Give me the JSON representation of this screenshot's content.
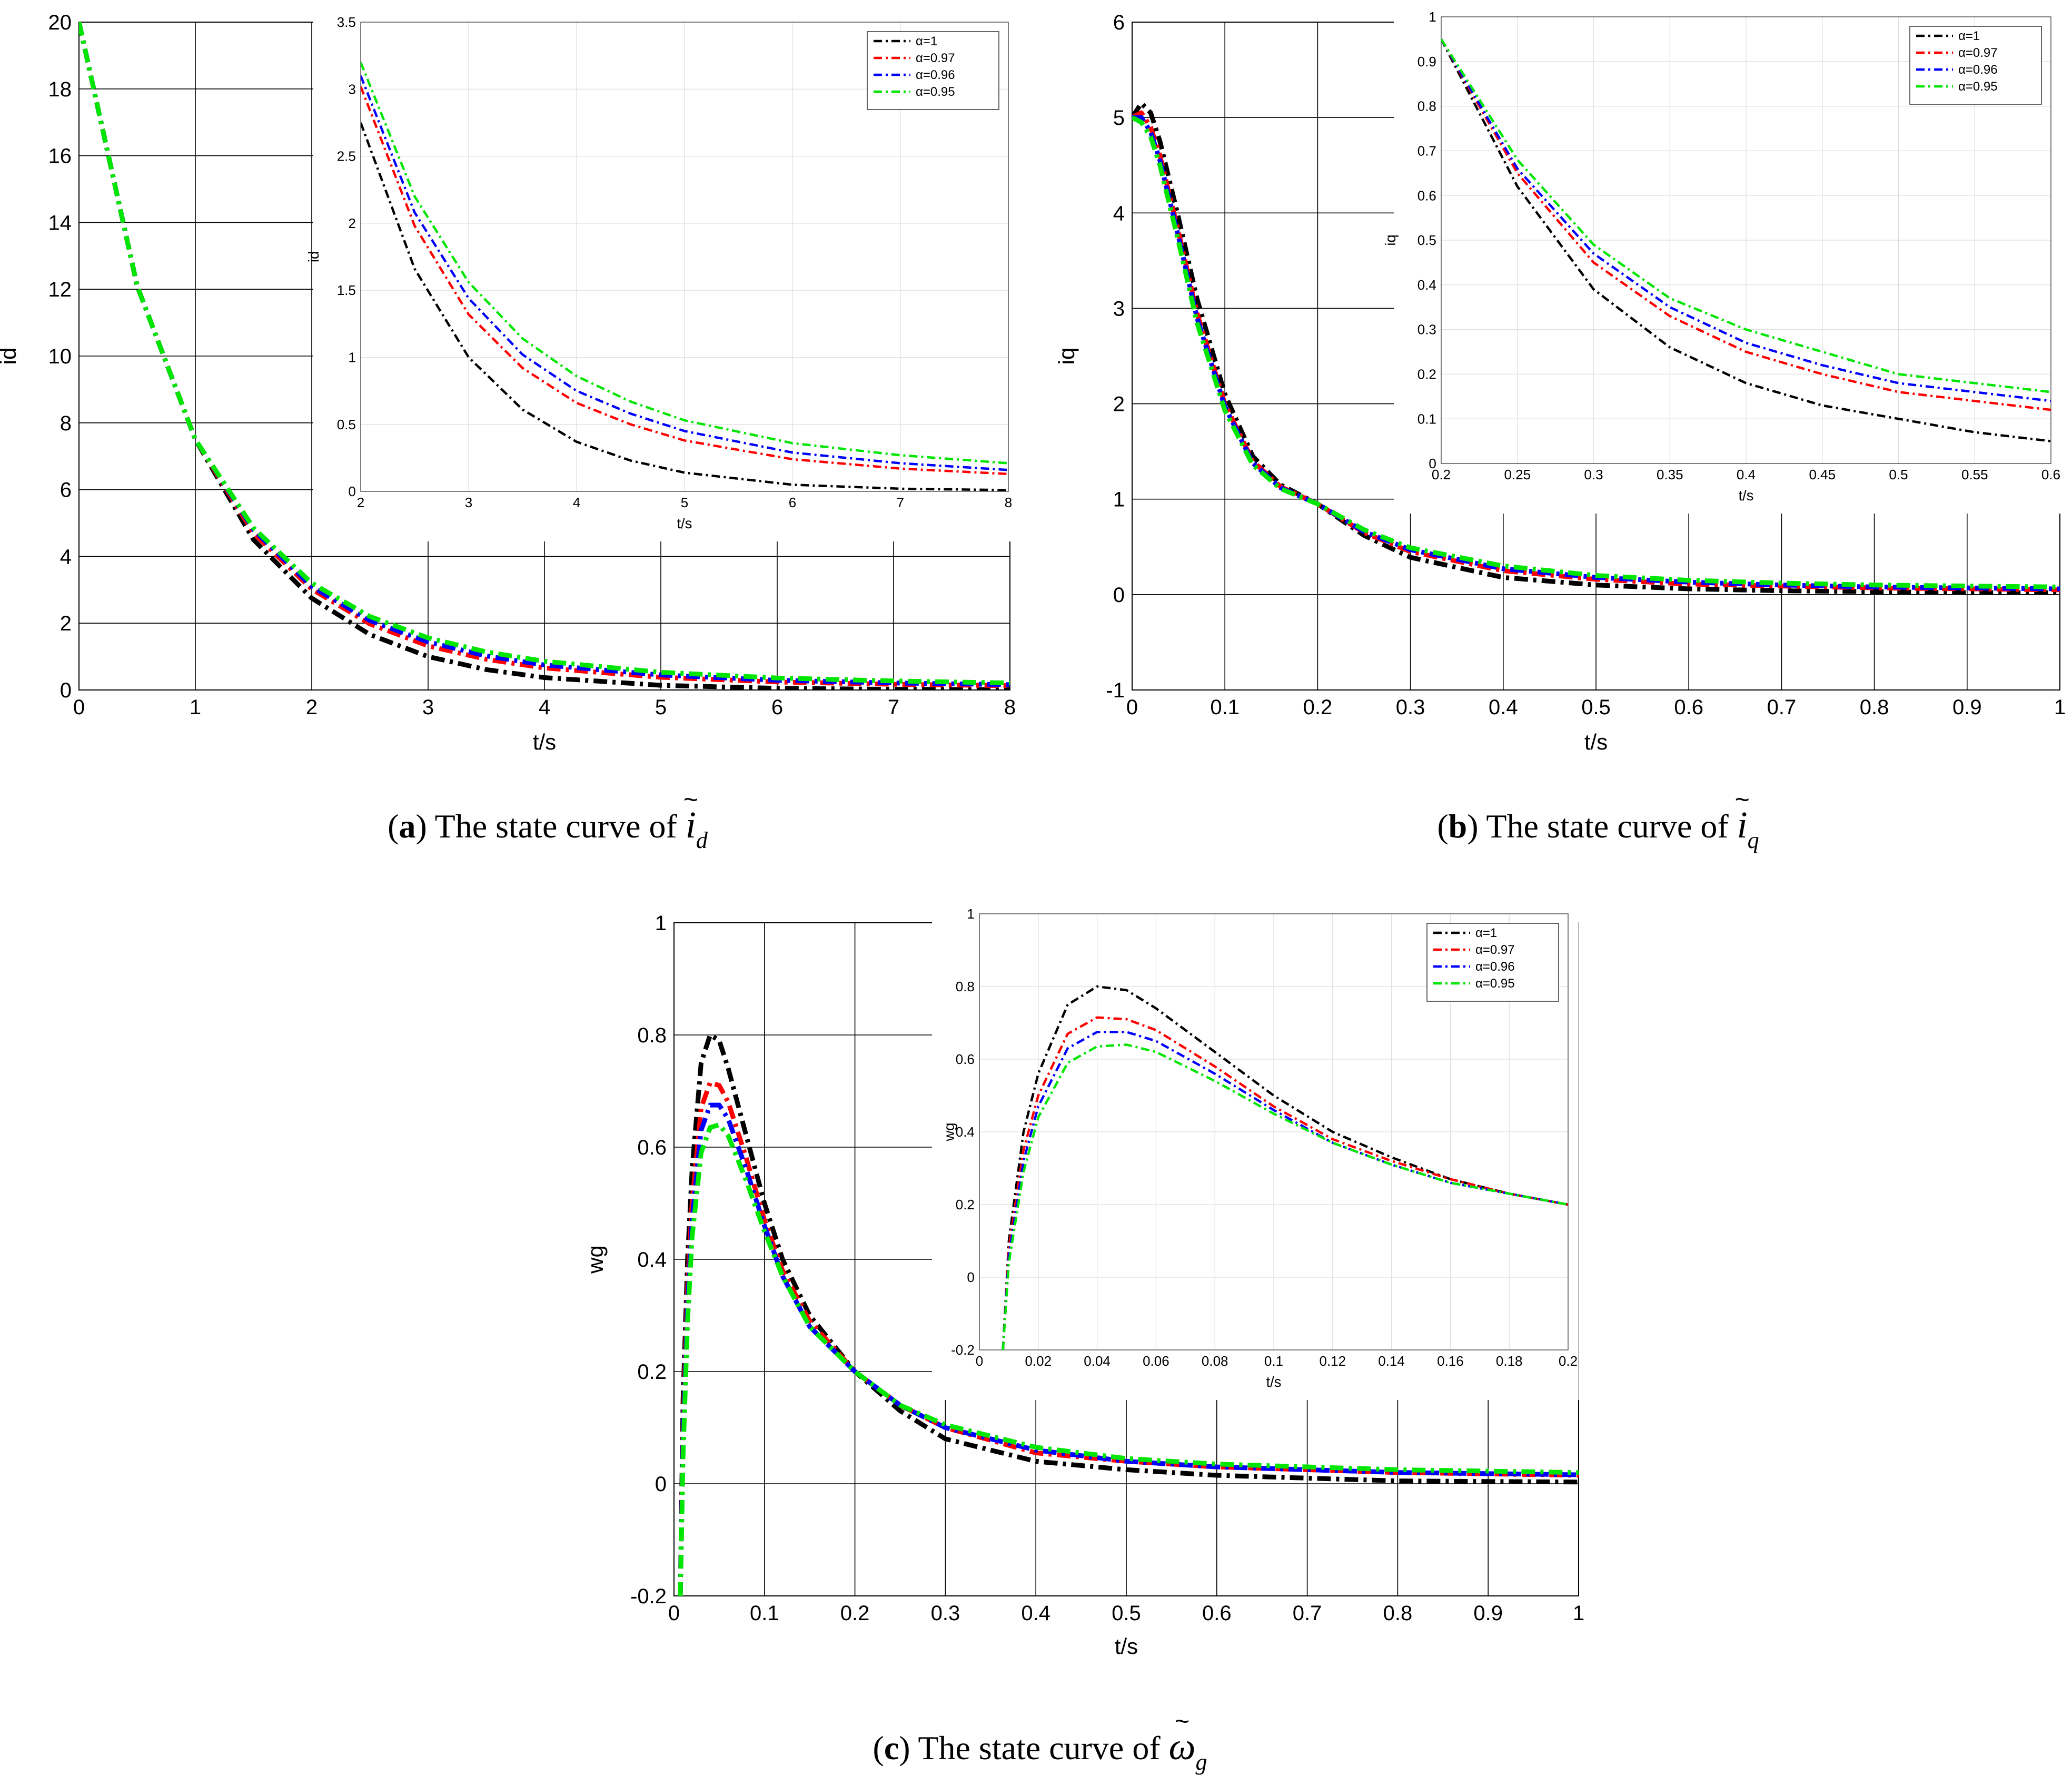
{
  "colors": {
    "n1": "#000000",
    "n097": "#ff0000",
    "n096": "#0000ff",
    "n095": "#00e600"
  },
  "captions": [
    {
      "label": "a",
      "text": " The state curve of ",
      "symbol": "i",
      "sub": "d"
    },
    {
      "label": "b",
      "text": " The state curve of ",
      "symbol": "i",
      "sub": "q"
    },
    {
      "label": "c",
      "text": " The state curve of ",
      "symbol": "ω",
      "sub": "g"
    }
  ],
  "chart_data": [
    {
      "id": "a-main",
      "type": "line",
      "xlabel": "t/s",
      "ylabel": "id",
      "xlim": [
        0,
        8
      ],
      "ylim": [
        0,
        20
      ],
      "xticks": [
        0,
        1,
        2,
        3,
        4,
        5,
        6,
        7,
        8
      ],
      "yticks": [
        0,
        2,
        4,
        6,
        8,
        10,
        12,
        14,
        16,
        18,
        20
      ],
      "legend": "none",
      "series": [
        {
          "name": "α=1",
          "color": "#000000",
          "x": [
            0,
            0.5,
            1,
            1.5,
            2,
            2.5,
            3,
            3.5,
            4,
            5,
            6,
            7,
            8
          ],
          "y": [
            20,
            12.1,
            7.5,
            4.5,
            2.75,
            1.66,
            1.0,
            0.61,
            0.37,
            0.14,
            0.05,
            0.02,
            0.01
          ]
        },
        {
          "name": "α=0.97",
          "color": "#ff0000",
          "x": [
            0,
            0.5,
            1,
            1.5,
            2,
            2.5,
            3,
            3.5,
            4,
            5,
            6,
            7,
            8
          ],
          "y": [
            20,
            12.1,
            7.5,
            4.7,
            3.02,
            1.98,
            1.32,
            0.92,
            0.66,
            0.38,
            0.24,
            0.17,
            0.13
          ]
        },
        {
          "name": "α=0.96",
          "color": "#0000ff",
          "x": [
            0,
            0.5,
            1,
            1.5,
            2,
            2.5,
            3,
            3.5,
            4,
            5,
            6,
            7,
            8
          ],
          "y": [
            20,
            12.1,
            7.5,
            4.8,
            3.1,
            2.08,
            1.44,
            1.02,
            0.75,
            0.45,
            0.29,
            0.21,
            0.16
          ]
        },
        {
          "name": "α=0.95",
          "color": "#00e600",
          "x": [
            0,
            0.5,
            1,
            1.5,
            2,
            2.5,
            3,
            3.5,
            4,
            5,
            6,
            7,
            8
          ],
          "y": [
            20,
            12.1,
            7.5,
            4.85,
            3.2,
            2.2,
            1.56,
            1.14,
            0.86,
            0.53,
            0.36,
            0.27,
            0.21
          ]
        }
      ]
    },
    {
      "id": "a-inset",
      "type": "line",
      "xlabel": "t/s",
      "ylabel": "id",
      "xlim": [
        2,
        8
      ],
      "ylim": [
        0,
        3.5
      ],
      "xticks": [
        2,
        3,
        4,
        5,
        6,
        7,
        8
      ],
      "yticks": [
        0,
        0.5,
        1,
        1.5,
        2,
        2.5,
        3,
        3.5
      ],
      "legend": "top-right",
      "series": [
        {
          "name": "α=1",
          "color": "#000000",
          "x": [
            2,
            2.5,
            3,
            3.5,
            4,
            4.5,
            5,
            6,
            7,
            8
          ],
          "y": [
            2.75,
            1.66,
            1.0,
            0.61,
            0.37,
            0.23,
            0.14,
            0.05,
            0.02,
            0.01
          ]
        },
        {
          "name": "α=0.97",
          "color": "#ff0000",
          "x": [
            2,
            2.5,
            3,
            3.5,
            4,
            4.5,
            5,
            6,
            7,
            8
          ],
          "y": [
            3.02,
            1.98,
            1.32,
            0.92,
            0.66,
            0.5,
            0.38,
            0.24,
            0.17,
            0.13
          ]
        },
        {
          "name": "α=0.96",
          "color": "#0000ff",
          "x": [
            2,
            2.5,
            3,
            3.5,
            4,
            4.5,
            5,
            6,
            7,
            8
          ],
          "y": [
            3.1,
            2.08,
            1.44,
            1.02,
            0.75,
            0.58,
            0.45,
            0.29,
            0.21,
            0.16
          ]
        },
        {
          "name": "α=0.95",
          "color": "#00e600",
          "x": [
            2,
            2.5,
            3,
            3.5,
            4,
            4.5,
            5,
            6,
            7,
            8
          ],
          "y": [
            3.2,
            2.2,
            1.56,
            1.14,
            0.86,
            0.67,
            0.53,
            0.36,
            0.27,
            0.21
          ]
        }
      ]
    },
    {
      "id": "b-main",
      "type": "line",
      "xlabel": "t/s",
      "ylabel": "iq",
      "xlim": [
        0,
        1
      ],
      "ylim": [
        -1,
        6
      ],
      "xticks": [
        0,
        0.1,
        0.2,
        0.3,
        0.4,
        0.5,
        0.6,
        0.7,
        0.8,
        0.9,
        1
      ],
      "yticks": [
        -1,
        0,
        1,
        2,
        3,
        4,
        5,
        6
      ],
      "legend": "none",
      "series": [
        {
          "name": "α=1",
          "color": "#000000",
          "x": [
            0,
            0.01,
            0.02,
            0.03,
            0.05,
            0.07,
            0.1,
            0.13,
            0.16,
            0.2,
            0.25,
            0.3,
            0.4,
            0.5,
            0.6,
            0.7,
            0.8,
            0.9,
            1
          ],
          "y": [
            5.0,
            5.15,
            5.05,
            4.75,
            3.95,
            3.1,
            2.1,
            1.45,
            1.15,
            0.95,
            0.62,
            0.39,
            0.18,
            0.1,
            0.06,
            0.04,
            0.03,
            0.02,
            0.02
          ]
        },
        {
          "name": "α=0.97",
          "color": "#ff0000",
          "x": [
            0,
            0.01,
            0.02,
            0.03,
            0.05,
            0.07,
            0.1,
            0.13,
            0.16,
            0.2,
            0.25,
            0.3,
            0.4,
            0.5,
            0.6,
            0.7,
            0.8,
            0.9,
            1
          ],
          "y": [
            5.0,
            5.05,
            4.9,
            4.6,
            3.8,
            2.95,
            2.0,
            1.4,
            1.13,
            0.95,
            0.65,
            0.45,
            0.25,
            0.16,
            0.11,
            0.09,
            0.07,
            0.06,
            0.05
          ]
        },
        {
          "name": "α=0.96",
          "color": "#0000ff",
          "x": [
            0,
            0.01,
            0.02,
            0.03,
            0.05,
            0.07,
            0.1,
            0.13,
            0.16,
            0.2,
            0.25,
            0.3,
            0.4,
            0.5,
            0.6,
            0.7,
            0.8,
            0.9,
            1
          ],
          "y": [
            5.0,
            5.0,
            4.85,
            4.55,
            3.75,
            2.9,
            1.97,
            1.38,
            1.12,
            0.95,
            0.66,
            0.47,
            0.27,
            0.18,
            0.13,
            0.1,
            0.08,
            0.07,
            0.06
          ]
        },
        {
          "name": "α=0.95",
          "color": "#00e600",
          "x": [
            0,
            0.01,
            0.02,
            0.03,
            0.05,
            0.07,
            0.1,
            0.13,
            0.16,
            0.2,
            0.25,
            0.3,
            0.4,
            0.5,
            0.6,
            0.7,
            0.8,
            0.9,
            1
          ],
          "y": [
            5.0,
            4.95,
            4.8,
            4.5,
            3.7,
            2.85,
            1.93,
            1.36,
            1.11,
            0.95,
            0.68,
            0.49,
            0.3,
            0.2,
            0.15,
            0.12,
            0.1,
            0.09,
            0.08
          ]
        }
      ]
    },
    {
      "id": "b-inset",
      "type": "line",
      "xlabel": "t/s",
      "ylabel": "iq",
      "xlim": [
        0.2,
        0.6
      ],
      "ylim": [
        0,
        1
      ],
      "xticks": [
        0.2,
        0.25,
        0.3,
        0.35,
        0.4,
        0.45,
        0.5,
        0.55,
        0.6
      ],
      "yticks": [
        0,
        0.1,
        0.2,
        0.3,
        0.4,
        0.5,
        0.6,
        0.7,
        0.8,
        0.9,
        1
      ],
      "legend": "top-right",
      "series": [
        {
          "name": "α=1",
          "color": "#000000",
          "x": [
            0.2,
            0.25,
            0.3,
            0.35,
            0.4,
            0.45,
            0.5,
            0.55,
            0.6
          ],
          "y": [
            0.95,
            0.62,
            0.39,
            0.26,
            0.18,
            0.13,
            0.1,
            0.07,
            0.05
          ]
        },
        {
          "name": "α=0.97",
          "color": "#ff0000",
          "x": [
            0.2,
            0.25,
            0.3,
            0.35,
            0.4,
            0.45,
            0.5,
            0.55,
            0.6
          ],
          "y": [
            0.95,
            0.65,
            0.45,
            0.33,
            0.25,
            0.2,
            0.16,
            0.14,
            0.12
          ]
        },
        {
          "name": "α=0.96",
          "color": "#0000ff",
          "x": [
            0.2,
            0.25,
            0.3,
            0.35,
            0.4,
            0.45,
            0.5,
            0.55,
            0.6
          ],
          "y": [
            0.95,
            0.66,
            0.47,
            0.35,
            0.27,
            0.22,
            0.18,
            0.16,
            0.14
          ]
        },
        {
          "name": "α=0.95",
          "color": "#00e600",
          "x": [
            0.2,
            0.25,
            0.3,
            0.35,
            0.4,
            0.45,
            0.5,
            0.55,
            0.6
          ],
          "y": [
            0.95,
            0.68,
            0.49,
            0.37,
            0.3,
            0.25,
            0.2,
            0.18,
            0.16
          ]
        }
      ]
    },
    {
      "id": "c-main",
      "type": "line",
      "xlabel": "t/s",
      "ylabel": "wg",
      "xlim": [
        0,
        1
      ],
      "ylim": [
        -0.2,
        1
      ],
      "xticks": [
        0,
        0.1,
        0.2,
        0.3,
        0.4,
        0.5,
        0.6,
        0.7,
        0.8,
        0.9,
        1
      ],
      "yticks": [
        -0.2,
        0,
        0.2,
        0.4,
        0.6,
        0.8,
        1
      ],
      "legend": "none",
      "series": [
        {
          "name": "α=1",
          "color": "#000000",
          "x": [
            0.007,
            0.01,
            0.015,
            0.02,
            0.03,
            0.04,
            0.05,
            0.06,
            0.08,
            0.1,
            0.12,
            0.15,
            0.2,
            0.25,
            0.3,
            0.4,
            0.5,
            0.6,
            0.8,
            1
          ],
          "y": [
            -0.2,
            0.15,
            0.4,
            0.56,
            0.75,
            0.8,
            0.79,
            0.74,
            0.62,
            0.5,
            0.4,
            0.3,
            0.2,
            0.13,
            0.08,
            0.04,
            0.025,
            0.015,
            0.005,
            0.003
          ]
        },
        {
          "name": "α=0.97",
          "color": "#ff0000",
          "x": [
            0.007,
            0.01,
            0.015,
            0.02,
            0.03,
            0.04,
            0.05,
            0.06,
            0.08,
            0.1,
            0.12,
            0.15,
            0.2,
            0.25,
            0.3,
            0.4,
            0.5,
            0.6,
            0.8,
            1
          ],
          "y": [
            -0.2,
            0.1,
            0.35,
            0.5,
            0.67,
            0.715,
            0.71,
            0.68,
            0.58,
            0.47,
            0.38,
            0.29,
            0.2,
            0.14,
            0.1,
            0.055,
            0.04,
            0.03,
            0.02,
            0.015
          ]
        },
        {
          "name": "α=0.96",
          "color": "#0000ff",
          "x": [
            0.007,
            0.01,
            0.015,
            0.02,
            0.03,
            0.04,
            0.05,
            0.06,
            0.08,
            0.1,
            0.12,
            0.15,
            0.2,
            0.25,
            0.3,
            0.4,
            0.5,
            0.6,
            0.8,
            1
          ],
          "y": [
            -0.2,
            0.08,
            0.32,
            0.47,
            0.63,
            0.675,
            0.675,
            0.65,
            0.56,
            0.46,
            0.37,
            0.28,
            0.2,
            0.14,
            0.1,
            0.06,
            0.04,
            0.03,
            0.02,
            0.016
          ]
        },
        {
          "name": "α=0.95",
          "color": "#00e600",
          "x": [
            0.007,
            0.01,
            0.015,
            0.02,
            0.03,
            0.04,
            0.05,
            0.06,
            0.08,
            0.1,
            0.12,
            0.15,
            0.2,
            0.25,
            0.3,
            0.4,
            0.5,
            0.6,
            0.8,
            1
          ],
          "y": [
            -0.2,
            0.05,
            0.29,
            0.44,
            0.59,
            0.635,
            0.64,
            0.62,
            0.54,
            0.45,
            0.37,
            0.28,
            0.2,
            0.14,
            0.105,
            0.065,
            0.045,
            0.035,
            0.025,
            0.02
          ]
        }
      ]
    },
    {
      "id": "c-inset",
      "type": "line",
      "xlabel": "t/s",
      "ylabel": "wg",
      "xlim": [
        0,
        0.2
      ],
      "ylim": [
        -0.2,
        1
      ],
      "xticks": [
        0,
        0.02,
        0.04,
        0.06,
        0.08,
        0.1,
        0.12,
        0.14,
        0.16,
        0.18,
        0.2
      ],
      "yticks": [
        -0.2,
        0,
        0.2,
        0.4,
        0.6,
        0.8,
        1
      ],
      "legend": "top-right",
      "series": [
        {
          "name": "α=1",
          "color": "#000000",
          "x": [
            0.008,
            0.01,
            0.015,
            0.02,
            0.03,
            0.04,
            0.05,
            0.06,
            0.08,
            0.1,
            0.12,
            0.14,
            0.16,
            0.18,
            0.2
          ],
          "y": [
            -0.2,
            0.1,
            0.4,
            0.56,
            0.75,
            0.8,
            0.79,
            0.74,
            0.62,
            0.5,
            0.4,
            0.33,
            0.27,
            0.23,
            0.2
          ]
        },
        {
          "name": "α=0.97",
          "color": "#ff0000",
          "x": [
            0.008,
            0.01,
            0.015,
            0.02,
            0.03,
            0.04,
            0.05,
            0.06,
            0.08,
            0.1,
            0.12,
            0.14,
            0.16,
            0.18,
            0.2
          ],
          "y": [
            -0.2,
            0.08,
            0.35,
            0.5,
            0.67,
            0.715,
            0.71,
            0.68,
            0.58,
            0.47,
            0.38,
            0.32,
            0.27,
            0.23,
            0.2
          ]
        },
        {
          "name": "α=0.96",
          "color": "#0000ff",
          "x": [
            0.008,
            0.01,
            0.015,
            0.02,
            0.03,
            0.04,
            0.05,
            0.06,
            0.08,
            0.1,
            0.12,
            0.14,
            0.16,
            0.18,
            0.2
          ],
          "y": [
            -0.2,
            0.06,
            0.32,
            0.47,
            0.63,
            0.675,
            0.675,
            0.65,
            0.56,
            0.46,
            0.37,
            0.31,
            0.26,
            0.23,
            0.2
          ]
        },
        {
          "name": "α=0.95",
          "color": "#00e600",
          "x": [
            0.008,
            0.01,
            0.015,
            0.02,
            0.03,
            0.04,
            0.05,
            0.06,
            0.08,
            0.1,
            0.12,
            0.14,
            0.16,
            0.18,
            0.2
          ],
          "y": [
            -0.2,
            0.04,
            0.29,
            0.44,
            0.59,
            0.635,
            0.64,
            0.62,
            0.54,
            0.45,
            0.37,
            0.31,
            0.26,
            0.23,
            0.2
          ]
        }
      ]
    }
  ]
}
